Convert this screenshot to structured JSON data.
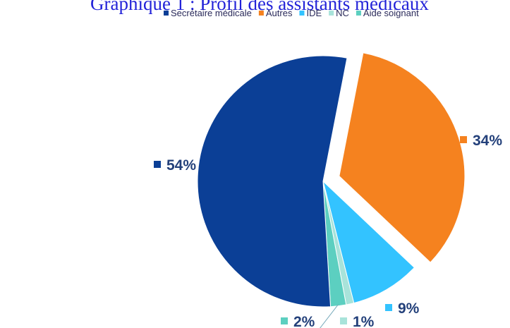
{
  "chart_data": {
    "type": "pie",
    "title": "Graphique 1 : Profil des assistants médicaux",
    "categories": [
      "Secrétaire médicale",
      "Autres",
      "IDE",
      "NC",
      "Aide soignant"
    ],
    "values": [
      54,
      34,
      9,
      1,
      2
    ],
    "value_labels": [
      "54%",
      "34%",
      "9%",
      "1%",
      "2%"
    ],
    "colors": [
      "#0b3f96",
      "#f5821f",
      "#33c3ff",
      "#a8e3da",
      "#5ccfc0"
    ],
    "legend": "top"
  }
}
